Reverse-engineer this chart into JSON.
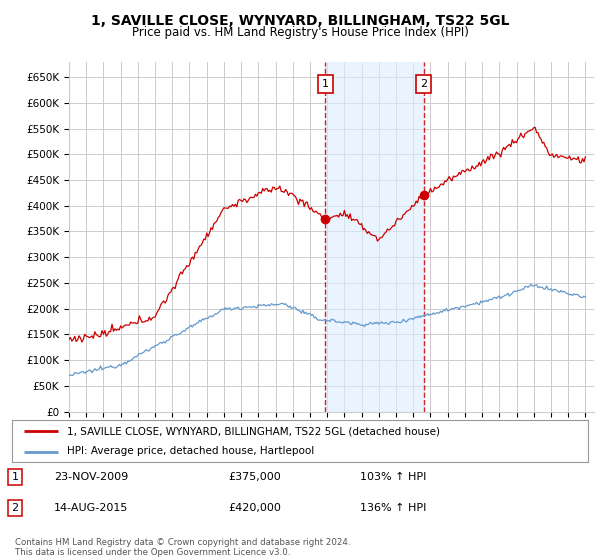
{
  "title": "1, SAVILLE CLOSE, WYNYARD, BILLINGHAM, TS22 5GL",
  "subtitle": "Price paid vs. HM Land Registry's House Price Index (HPI)",
  "yticks": [
    0,
    50000,
    100000,
    150000,
    200000,
    250000,
    300000,
    350000,
    400000,
    450000,
    500000,
    550000,
    600000,
    650000
  ],
  "ytick_labels": [
    "£0",
    "£50K",
    "£100K",
    "£150K",
    "£200K",
    "£250K",
    "£300K",
    "£350K",
    "£400K",
    "£450K",
    "£500K",
    "£550K",
    "£600K",
    "£650K"
  ],
  "ylim": [
    0,
    680000
  ],
  "xlim_start": 1995.0,
  "xlim_end": 2025.5,
  "transaction1_x": 2009.9,
  "transaction1_y": 375000,
  "transaction1_label": "1",
  "transaction1_date": "23-NOV-2009",
  "transaction1_price": "£375,000",
  "transaction1_hpi": "103% ↑ HPI",
  "transaction2_x": 2015.62,
  "transaction2_y": 420000,
  "transaction2_label": "2",
  "transaction2_date": "14-AUG-2015",
  "transaction2_price": "£420,000",
  "transaction2_hpi": "136% ↑ HPI",
  "shade_x1_start": 2009.9,
  "shade_x1_end": 2015.62,
  "legend_line1": "1, SAVILLE CLOSE, WYNYARD, BILLINGHAM, TS22 5GL (detached house)",
  "legend_line2": "HPI: Average price, detached house, Hartlepool",
  "footer": "Contains HM Land Registry data © Crown copyright and database right 2024.\nThis data is licensed under the Open Government Licence v3.0.",
  "hpi_color": "#6699cc",
  "price_color": "#cc0000",
  "bg_color": "#ffffff",
  "grid_color": "#cccccc",
  "shade_color": "#ddeeff"
}
